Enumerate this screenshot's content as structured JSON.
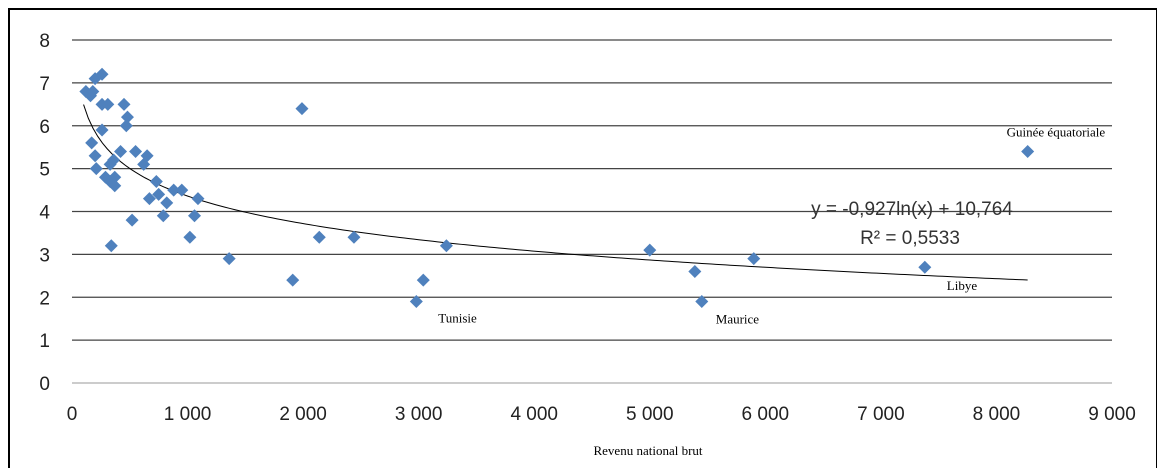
{
  "chart_data": {
    "type": "scatter",
    "xlabel": "Revenu national brut",
    "ylabel": "",
    "xlim": [
      0,
      9000
    ],
    "ylim": [
      0,
      8
    ],
    "x_ticks": [
      "0",
      "1 000",
      "2 000",
      "3 000",
      "4 000",
      "5 000",
      "6 000",
      "7 000",
      "8 000",
      "9 000"
    ],
    "y_ticks": [
      "0",
      "1",
      "2",
      "3",
      "4",
      "5",
      "6",
      "7",
      "8"
    ],
    "grid": "horizontal",
    "marker_color": "#4f81bd",
    "trend_color": "#000000",
    "points": [
      [
        120,
        6.8
      ],
      [
        160,
        6.7
      ],
      [
        180,
        6.8
      ],
      [
        200,
        7.1
      ],
      [
        260,
        7.2
      ],
      [
        260,
        6.5
      ],
      [
        310,
        6.5
      ],
      [
        170,
        5.6
      ],
      [
        200,
        5.3
      ],
      [
        210,
        5.0
      ],
      [
        260,
        5.9
      ],
      [
        290,
        4.8
      ],
      [
        330,
        4.7
      ],
      [
        330,
        5.1
      ],
      [
        360,
        5.2
      ],
      [
        370,
        4.8
      ],
      [
        370,
        4.6
      ],
      [
        420,
        5.4
      ],
      [
        450,
        6.5
      ],
      [
        470,
        6.0
      ],
      [
        480,
        6.2
      ],
      [
        550,
        5.4
      ],
      [
        620,
        5.1
      ],
      [
        650,
        5.3
      ],
      [
        670,
        4.3
      ],
      [
        730,
        4.7
      ],
      [
        750,
        4.4
      ],
      [
        790,
        3.9
      ],
      [
        820,
        4.2
      ],
      [
        880,
        4.5
      ],
      [
        950,
        4.5
      ],
      [
        1020,
        3.4
      ],
      [
        1060,
        3.9
      ],
      [
        1090,
        4.3
      ],
      [
        340,
        3.2
      ],
      [
        520,
        3.8
      ],
      [
        1360,
        2.9
      ],
      [
        1910,
        2.4
      ],
      [
        1990,
        6.4
      ],
      [
        2140,
        3.4
      ],
      [
        2440,
        3.4
      ],
      [
        2980,
        1.9
      ],
      [
        3040,
        2.4
      ],
      [
        3240,
        3.2
      ],
      [
        5000,
        3.1
      ],
      [
        5390,
        2.6
      ],
      [
        5450,
        1.9
      ],
      [
        5900,
        2.9
      ],
      [
        7380,
        2.7
      ],
      [
        8270,
        5.4
      ]
    ],
    "trendline": {
      "type": "logarithmic",
      "a": -0.927,
      "b": 10.764,
      "x_from": 100,
      "x_to": 8270
    },
    "annotations": [
      {
        "text": "Tunisie",
        "x": 3040,
        "y": 1.9
      },
      {
        "text": "Maurice",
        "x": 5450,
        "y": 1.9
      },
      {
        "text": "Libye",
        "x": 7380,
        "y": 2.7
      },
      {
        "text": "Guinée équatoriale",
        "x": 8270,
        "y": 5.4
      }
    ],
    "equation": "y = -0,927ln(x) + 10,764",
    "r_squared": "R² = 0,5533"
  }
}
